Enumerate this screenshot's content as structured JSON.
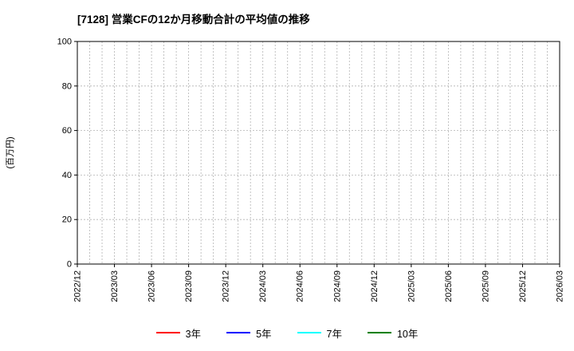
{
  "chart_data": {
    "type": "line",
    "title": "[7128]  営業CFの12か月移動合計の平均値の推移",
    "ylabel": "(百万円)",
    "xlabel": "",
    "ylim": [
      0,
      100
    ],
    "yticks": [
      0,
      20,
      40,
      60,
      80,
      100
    ],
    "x_tick_labels": [
      "2022/12",
      "2023/03",
      "2023/06",
      "2023/09",
      "2023/12",
      "2024/03",
      "2024/06",
      "2024/09",
      "2024/12",
      "2025/03",
      "2025/06",
      "2025/09",
      "2025/12",
      "2026/03"
    ],
    "months_per_tick": 3,
    "grid": true,
    "grid_style": "dashed",
    "legend_position": "bottom",
    "series": [
      {
        "name": "3年",
        "color": "#ff0000",
        "values": []
      },
      {
        "name": "5年",
        "color": "#0000ff",
        "values": []
      },
      {
        "name": "7年",
        "color": "#00ffff",
        "values": []
      },
      {
        "name": "10年",
        "color": "#008000",
        "values": []
      }
    ]
  }
}
